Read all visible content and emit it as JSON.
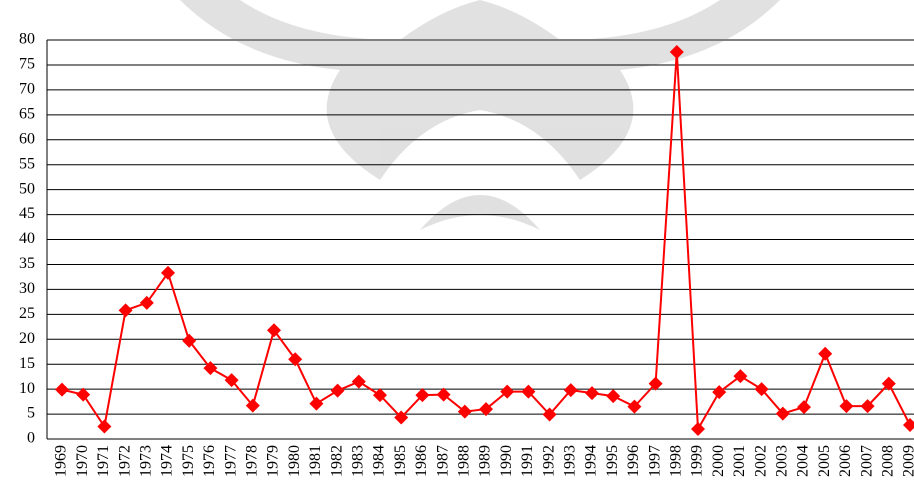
{
  "chart_data": {
    "type": "line",
    "categories": [
      "1969",
      "1970",
      "1971",
      "1972",
      "1973",
      "1974",
      "1975",
      "1976",
      "1977",
      "1978",
      "1979",
      "1980",
      "1981",
      "1982",
      "1983",
      "1984",
      "1985",
      "1986",
      "1987",
      "1988",
      "1989",
      "1990",
      "1991",
      "1992",
      "1993",
      "1994",
      "1995",
      "1996",
      "1997",
      "1998",
      "1999",
      "2000",
      "2001",
      "2002",
      "2003",
      "2004",
      "2005",
      "2006",
      "2007",
      "2008",
      "2009"
    ],
    "values": [
      9.9,
      8.9,
      2.5,
      25.8,
      27.3,
      33.3,
      19.7,
      14.2,
      11.8,
      6.7,
      21.8,
      16.0,
      7.1,
      9.7,
      11.5,
      8.8,
      4.3,
      8.8,
      8.9,
      5.5,
      6.0,
      9.5,
      9.5,
      4.9,
      9.8,
      9.2,
      8.6,
      6.5,
      11.1,
      77.6,
      2.0,
      9.4,
      12.6,
      10.0,
      5.1,
      6.4,
      17.1,
      6.6,
      6.6,
      11.1,
      2.8
    ],
    "color": "#ff0000",
    "ylim": [
      0,
      80
    ],
    "yticks": [
      0,
      5,
      10,
      15,
      20,
      25,
      30,
      35,
      40,
      45,
      50,
      55,
      60,
      65,
      70,
      75,
      80
    ],
    "grid": true
  }
}
